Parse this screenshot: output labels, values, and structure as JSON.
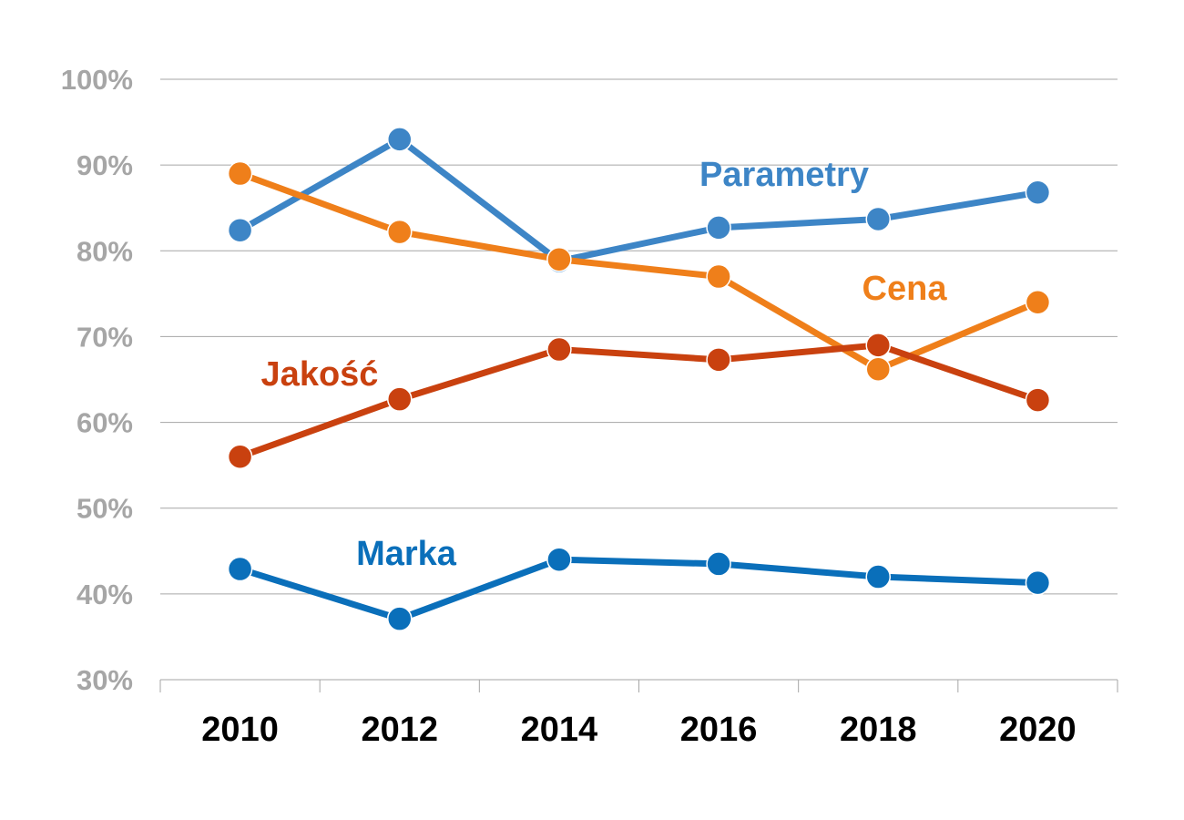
{
  "chart_data": {
    "type": "line",
    "categories": [
      "2010",
      "2012",
      "2014",
      "2016",
      "2018",
      "2020"
    ],
    "ylim": [
      30,
      100
    ],
    "yticks": [
      "30%",
      "40%",
      "50%",
      "60%",
      "70%",
      "80%",
      "90%",
      "100%"
    ],
    "grid": true,
    "series": [
      {
        "name": "Parametry",
        "color": "#3d85c6",
        "values": [
          82.4,
          93.0,
          78.8,
          82.7,
          83.7,
          86.8
        ]
      },
      {
        "name": "Cena",
        "color": "#ef7f1a",
        "values": [
          89.0,
          82.2,
          79.0,
          77.0,
          66.2,
          74.0
        ]
      },
      {
        "name": "Jakość",
        "color": "#c9410f",
        "values": [
          56.0,
          62.7,
          68.5,
          67.3,
          69.0,
          62.6
        ]
      },
      {
        "name": "Marka",
        "color": "#0a6fba",
        "values": [
          42.9,
          37.1,
          44.0,
          43.5,
          42.0,
          41.3
        ]
      }
    ]
  }
}
